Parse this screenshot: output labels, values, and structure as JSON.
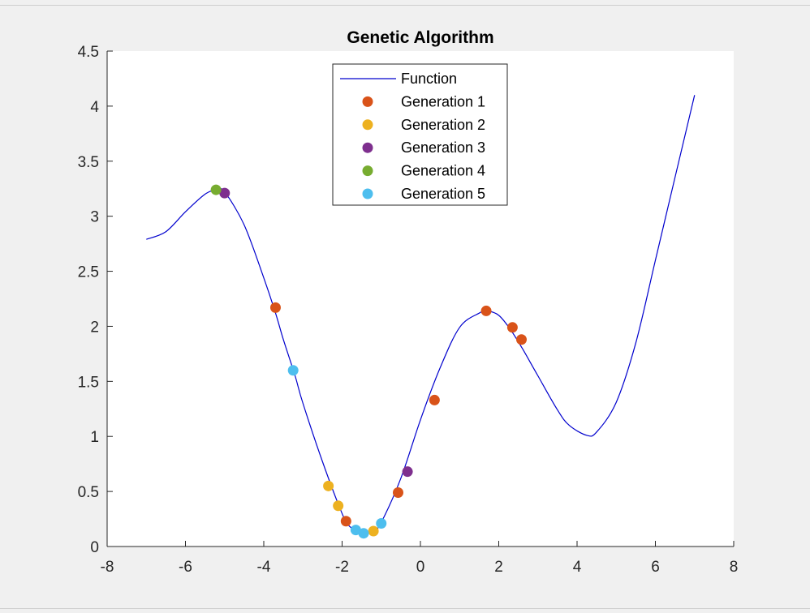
{
  "chart_data": {
    "type": "line",
    "title": "Genetic Algorithm",
    "xlabel": "",
    "ylabel": "",
    "xlim": [
      -8,
      8
    ],
    "ylim": [
      0,
      4.5
    ],
    "xticks": [
      -8,
      -6,
      -4,
      -2,
      0,
      2,
      4,
      6,
      8
    ],
    "yticks": [
      0,
      0.5,
      1,
      1.5,
      2,
      2.5,
      3,
      3.5,
      4,
      4.5
    ],
    "xtick_labels": [
      "-8",
      "-6",
      "-4",
      "-2",
      "0",
      "2",
      "4",
      "6",
      "8"
    ],
    "ytick_labels": [
      "0",
      "0.5",
      "1",
      "1.5",
      "2",
      "2.5",
      "3",
      "3.5",
      "4",
      "4.5"
    ],
    "grid": false,
    "legend_position": "top-center",
    "function": {
      "name": "Function",
      "color": "#0000cd",
      "x": [
        -7.0,
        -6.5,
        -6.0,
        -5.5,
        -5.2,
        -5.0,
        -4.5,
        -4.0,
        -3.7,
        -3.5,
        -3.2,
        -3.0,
        -2.5,
        -2.0,
        -1.8,
        -1.5,
        -1.2,
        -1.0,
        -0.5,
        0.0,
        0.5,
        1.0,
        1.5,
        1.7,
        2.0,
        2.3,
        2.6,
        3.0,
        3.5,
        3.8,
        4.25,
        4.5,
        5.0,
        5.5,
        6.0,
        6.5,
        7.0
      ],
      "y": [
        2.79,
        2.86,
        3.04,
        3.2,
        3.24,
        3.22,
        2.92,
        2.44,
        2.12,
        1.88,
        1.55,
        1.3,
        0.77,
        0.3,
        0.18,
        0.12,
        0.14,
        0.22,
        0.62,
        1.15,
        1.62,
        1.99,
        2.12,
        2.14,
        2.1,
        1.97,
        1.8,
        1.55,
        1.24,
        1.1,
        1.01,
        1.04,
        1.31,
        1.85,
        2.6,
        3.35,
        4.1
      ]
    },
    "series": [
      {
        "name": "Generation 1",
        "color": "#d95319",
        "x": [
          -3.7,
          -1.9,
          -0.57,
          0.36,
          1.68,
          2.35,
          2.58
        ],
        "y": [
          2.17,
          0.23,
          0.49,
          1.33,
          2.14,
          1.99,
          1.88
        ]
      },
      {
        "name": "Generation 2",
        "color": "#edb120",
        "x": [
          -2.35,
          -2.1,
          -1.2
        ],
        "y": [
          0.55,
          0.37,
          0.14
        ]
      },
      {
        "name": "Generation 3",
        "color": "#7e2f8e",
        "x": [
          -5.0,
          -0.33
        ],
        "y": [
          3.21,
          0.68
        ]
      },
      {
        "name": "Generation 4",
        "color": "#77ac30",
        "x": [
          -5.22
        ],
        "y": [
          3.24
        ]
      },
      {
        "name": "Generation 5",
        "color": "#4dbeee",
        "x": [
          -3.25,
          -1.65,
          -1.45,
          -1.0
        ],
        "y": [
          1.6,
          0.15,
          0.12,
          0.21
        ]
      }
    ]
  }
}
